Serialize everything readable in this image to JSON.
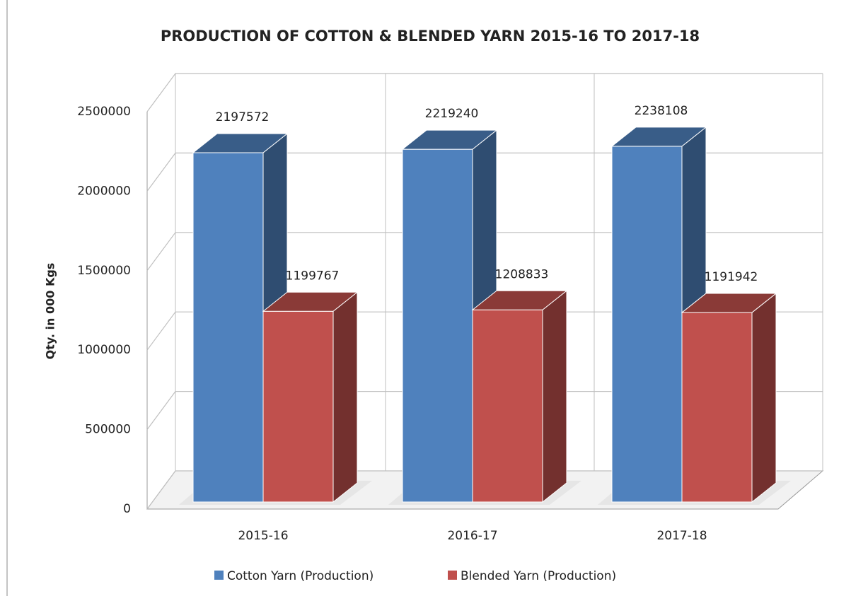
{
  "chart_data": {
    "type": "bar3d",
    "title": "PRODUCTION OF COTTON & BLENDED YARN 2015-16 TO 2017-18",
    "y_axis_label": "Qty. in 000 Kgs",
    "categories": [
      "2015-16",
      "2016-17",
      "2017-18"
    ],
    "series": [
      {
        "name": "Cotton Yarn (Production)",
        "color": "#4f81bd",
        "values": [
          2197572,
          2219240,
          2238108
        ]
      },
      {
        "name": "Blended Yarn (Production)",
        "color": "#c0504d",
        "values": [
          1199767,
          1208833,
          1191942
        ]
      }
    ],
    "ylim": [
      0,
      2500000
    ],
    "yticks": [
      0,
      500000,
      1000000,
      1500000,
      2000000,
      2500000
    ],
    "grid": true,
    "legend": "bottom"
  }
}
